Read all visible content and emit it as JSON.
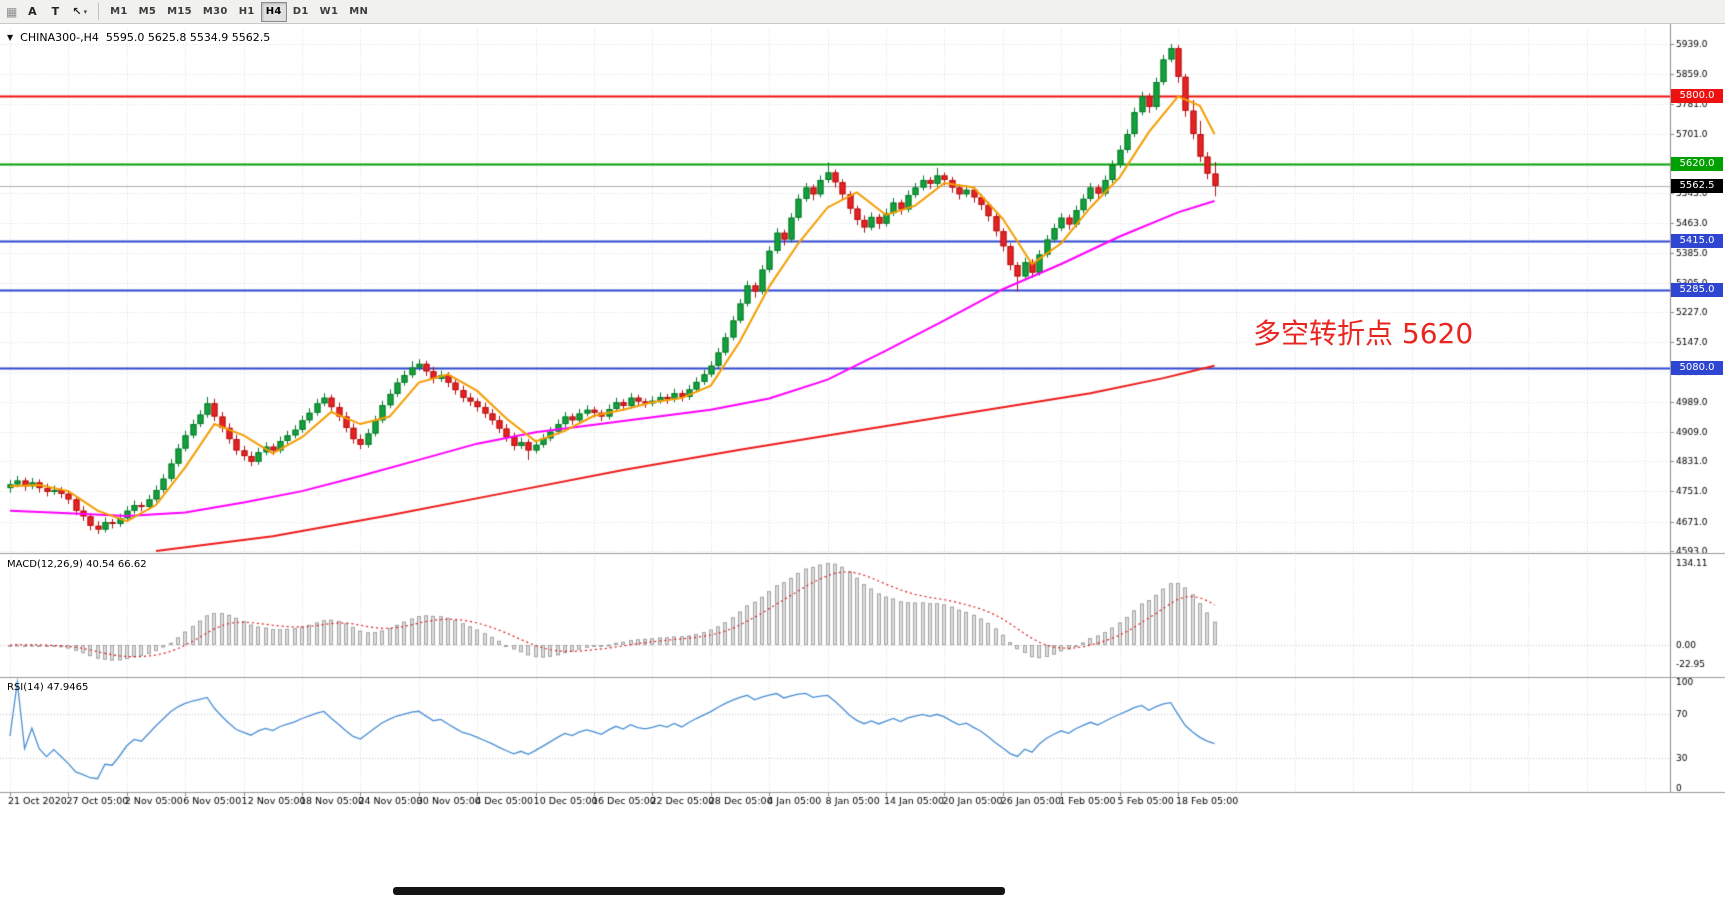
{
  "toolbar": {
    "a_label": "A",
    "t_label": "T",
    "icons": {
      "grip": "▦",
      "cursor": "↖",
      "dropdown": "▾",
      "collapse": "▼"
    },
    "timeframes": [
      "M1",
      "M5",
      "M15",
      "M30",
      "H1",
      "H4",
      "D1",
      "W1",
      "MN"
    ],
    "active_timeframe": "H4"
  },
  "chart": {
    "title_symbol": "CHINA300-,H4",
    "title_ohlc": "5595.0 5625.8 5534.9 5562.5",
    "macd_label": "MACD(12,26,9) 40.54 66.62",
    "rsi_label": "RSI(14) 47.9465",
    "annotation": {
      "text": "多空转折点 5620",
      "color": "#e8251f"
    }
  },
  "chart_data": {
    "type": "candlestick",
    "symbol": "CHINA300-",
    "timeframe": "H4",
    "last_candle": {
      "open": 5595.0,
      "high": 5625.8,
      "low": 5534.9,
      "close": 5562.5
    },
    "price_axis": {
      "min": 4593.0,
      "max": 5939.0,
      "ticks": [
        5939.0,
        5859.0,
        5781.0,
        5701.0,
        5621.0,
        5543.0,
        5463.0,
        5385.0,
        5305.0,
        5227.0,
        5147.0,
        5069.0,
        4989.0,
        4909.0,
        4831.0,
        4751.0,
        4671.0,
        4593.0
      ]
    },
    "label_every_n_bars": 8,
    "x_labels": [
      "21 Oct 2020",
      "27 Oct 05:00",
      "2 Nov 05:00",
      "6 Nov 05:00",
      "12 Nov 05:00",
      "18 Nov 05:00",
      "24 Nov 05:00",
      "30 Nov 05:00",
      "4 Dec 05:00",
      "10 Dec 05:00",
      "16 Dec 05:00",
      "22 Dec 05:00",
      "28 Dec 05:00",
      "4 Jan 05:00",
      "8 Jan 05:00",
      "14 Jan 05:00",
      "20 Jan 05:00",
      "26 Jan 05:00",
      "1 Feb 05:00",
      "5 Feb 05:00",
      "18 Feb 05:00"
    ],
    "levels": [
      {
        "price": 5800.0,
        "label": "5800.0",
        "color": "#ef1010"
      },
      {
        "price": 5620.0,
        "label": "5620.0",
        "color": "#00a000"
      },
      {
        "price": 5415.0,
        "label": "5415.0",
        "color": "#2e46d1"
      },
      {
        "price": 5285.0,
        "label": "5285.0",
        "color": "#2e46d1"
      },
      {
        "price": 5080.0,
        "label": "5080.0",
        "color": "#2e46d1"
      }
    ],
    "current_price": {
      "value": 5562.5,
      "label": "5562.5",
      "line_color": "#b0b0b0",
      "tag_color": "#000000"
    },
    "candles": [
      [
        4760,
        4782,
        4748,
        4770
      ],
      [
        4770,
        4792,
        4762,
        4780
      ],
      [
        4780,
        4788,
        4753,
        4765
      ],
      [
        4765,
        4787,
        4757,
        4775
      ],
      [
        4775,
        4783,
        4748,
        4760
      ],
      [
        4760,
        4772,
        4738,
        4750
      ],
      [
        4750,
        4767,
        4742,
        4755
      ],
      [
        4755,
        4763,
        4733,
        4745
      ],
      [
        4745,
        4753,
        4718,
        4730
      ],
      [
        4730,
        4738,
        4688,
        4700
      ],
      [
        4700,
        4712,
        4673,
        4685
      ],
      [
        4685,
        4693,
        4648,
        4660
      ],
      [
        4660,
        4672,
        4638,
        4650
      ],
      [
        4650,
        4682,
        4642,
        4670
      ],
      [
        4670,
        4678,
        4653,
        4665
      ],
      [
        4665,
        4692,
        4657,
        4680
      ],
      [
        4680,
        4712,
        4672,
        4700
      ],
      [
        4700,
        4727,
        4692,
        4715
      ],
      [
        4715,
        4723,
        4698,
        4710
      ],
      [
        4710,
        4742,
        4702,
        4730
      ],
      [
        4730,
        4767,
        4722,
        4755
      ],
      [
        4755,
        4797,
        4747,
        4785
      ],
      [
        4785,
        4837,
        4777,
        4825
      ],
      [
        4825,
        4877,
        4817,
        4865
      ],
      [
        4865,
        4912,
        4857,
        4900
      ],
      [
        4900,
        4942,
        4892,
        4930
      ],
      [
        4930,
        4967,
        4922,
        4955
      ],
      [
        4955,
        5002,
        4947,
        4985
      ],
      [
        4985,
        4997,
        4938,
        4950
      ],
      [
        4950,
        4962,
        4908,
        4920
      ],
      [
        4920,
        4932,
        4878,
        4890
      ],
      [
        4890,
        4902,
        4848,
        4860
      ],
      [
        4860,
        4872,
        4833,
        4845
      ],
      [
        4845,
        4857,
        4818,
        4830
      ],
      [
        4830,
        4867,
        4822,
        4855
      ],
      [
        4855,
        4882,
        4847,
        4870
      ],
      [
        4870,
        4878,
        4848,
        4860
      ],
      [
        4860,
        4897,
        4852,
        4885
      ],
      [
        4885,
        4912,
        4877,
        4900
      ],
      [
        4900,
        4927,
        4892,
        4915
      ],
      [
        4915,
        4952,
        4907,
        4940
      ],
      [
        4940,
        4972,
        4932,
        4960
      ],
      [
        4960,
        4997,
        4952,
        4985
      ],
      [
        4985,
        5012,
        4977,
        5000
      ],
      [
        5000,
        5008,
        4963,
        4975
      ],
      [
        4975,
        4987,
        4938,
        4950
      ],
      [
        4950,
        4962,
        4908,
        4920
      ],
      [
        4920,
        4932,
        4878,
        4890
      ],
      [
        4890,
        4902,
        4863,
        4875
      ],
      [
        4875,
        4917,
        4867,
        4905
      ],
      [
        4905,
        4952,
        4897,
        4940
      ],
      [
        4940,
        4992,
        4932,
        4980
      ],
      [
        4980,
        5022,
        4972,
        5010
      ],
      [
        5010,
        5052,
        5002,
        5040
      ],
      [
        5040,
        5072,
        5032,
        5060
      ],
      [
        5060,
        5097,
        5052,
        5080
      ],
      [
        5080,
        5102,
        5072,
        5090
      ],
      [
        5090,
        5098,
        5058,
        5070
      ],
      [
        5070,
        5082,
        5038,
        5050
      ],
      [
        5050,
        5072,
        5042,
        5060
      ],
      [
        5060,
        5068,
        5028,
        5040
      ],
      [
        5040,
        5052,
        5008,
        5020
      ],
      [
        5020,
        5032,
        4988,
        5000
      ],
      [
        5000,
        5012,
        4978,
        4990
      ],
      [
        4990,
        4998,
        4963,
        4975
      ],
      [
        4975,
        4987,
        4946,
        4958
      ],
      [
        4958,
        4970,
        4928,
        4940
      ],
      [
        4940,
        4952,
        4906,
        4918
      ],
      [
        4918,
        4930,
        4883,
        4895
      ],
      [
        4895,
        4907,
        4860,
        4872
      ],
      [
        4872,
        4894,
        4864,
        4882
      ],
      [
        4882,
        4890,
        4835,
        4860
      ],
      [
        4860,
        4887,
        4852,
        4875
      ],
      [
        4875,
        4904,
        4867,
        4892
      ],
      [
        4892,
        4922,
        4884,
        4910
      ],
      [
        4910,
        4942,
        4902,
        4930
      ],
      [
        4930,
        4962,
        4922,
        4950
      ],
      [
        4950,
        4958,
        4928,
        4940
      ],
      [
        4940,
        4970,
        4932,
        4958
      ],
      [
        4958,
        4980,
        4950,
        4968
      ],
      [
        4968,
        4976,
        4948,
        4960
      ],
      [
        4960,
        4968,
        4938,
        4950
      ],
      [
        4950,
        4982,
        4942,
        4970
      ],
      [
        4970,
        5000,
        4962,
        4988
      ],
      [
        4988,
        4996,
        4966,
        4978
      ],
      [
        4978,
        5012,
        4970,
        5000
      ],
      [
        5000,
        5008,
        4978,
        4990
      ],
      [
        4990,
        4998,
        4973,
        4985
      ],
      [
        4985,
        5004,
        4977,
        4992
      ],
      [
        4992,
        5014,
        4984,
        5002
      ],
      [
        5002,
        5010,
        4984,
        4996
      ],
      [
        4996,
        5024,
        4988,
        5012
      ],
      [
        5012,
        5020,
        4990,
        5002
      ],
      [
        5002,
        5034,
        4994,
        5022
      ],
      [
        5022,
        5054,
        5014,
        5042
      ],
      [
        5042,
        5074,
        5034,
        5062
      ],
      [
        5062,
        5097,
        5054,
        5085
      ],
      [
        5085,
        5132,
        5077,
        5120
      ],
      [
        5120,
        5172,
        5112,
        5160
      ],
      [
        5160,
        5217,
        5152,
        5205
      ],
      [
        5205,
        5262,
        5197,
        5250
      ],
      [
        5250,
        5310,
        5242,
        5298
      ],
      [
        5298,
        5306,
        5266,
        5282
      ],
      [
        5282,
        5352,
        5274,
        5340
      ],
      [
        5340,
        5402,
        5332,
        5390
      ],
      [
        5390,
        5450,
        5382,
        5438
      ],
      [
        5438,
        5446,
        5404,
        5420
      ],
      [
        5420,
        5490,
        5412,
        5478
      ],
      [
        5478,
        5540,
        5470,
        5528
      ],
      [
        5528,
        5570,
        5520,
        5558
      ],
      [
        5558,
        5566,
        5524,
        5540
      ],
      [
        5540,
        5590,
        5532,
        5578
      ],
      [
        5578,
        5625,
        5570,
        5598
      ],
      [
        5598,
        5606,
        5558,
        5572
      ],
      [
        5572,
        5580,
        5526,
        5540
      ],
      [
        5540,
        5548,
        5488,
        5502
      ],
      [
        5502,
        5510,
        5458,
        5472
      ],
      [
        5472,
        5484,
        5438,
        5452
      ],
      [
        5452,
        5492,
        5444,
        5480
      ],
      [
        5480,
        5488,
        5448,
        5462
      ],
      [
        5462,
        5502,
        5454,
        5490
      ],
      [
        5490,
        5530,
        5482,
        5518
      ],
      [
        5518,
        5526,
        5486,
        5500
      ],
      [
        5500,
        5550,
        5492,
        5538
      ],
      [
        5538,
        5570,
        5530,
        5558
      ],
      [
        5558,
        5590,
        5550,
        5578
      ],
      [
        5578,
        5586,
        5554,
        5568
      ],
      [
        5568,
        5610,
        5560,
        5590
      ],
      [
        5590,
        5598,
        5564,
        5578
      ],
      [
        5578,
        5586,
        5544,
        5558
      ],
      [
        5558,
        5566,
        5526,
        5540
      ],
      [
        5540,
        5564,
        5532,
        5552
      ],
      [
        5552,
        5560,
        5518,
        5532
      ],
      [
        5532,
        5540,
        5498,
        5512
      ],
      [
        5512,
        5520,
        5468,
        5482
      ],
      [
        5482,
        5490,
        5428,
        5442
      ],
      [
        5442,
        5450,
        5388,
        5402
      ],
      [
        5402,
        5410,
        5338,
        5352
      ],
      [
        5352,
        5360,
        5282,
        5322
      ],
      [
        5322,
        5372,
        5314,
        5360
      ],
      [
        5360,
        5368,
        5318,
        5332
      ],
      [
        5332,
        5392,
        5324,
        5380
      ],
      [
        5380,
        5432,
        5372,
        5420
      ],
      [
        5420,
        5462,
        5412,
        5450
      ],
      [
        5450,
        5490,
        5442,
        5478
      ],
      [
        5478,
        5486,
        5446,
        5460
      ],
      [
        5460,
        5510,
        5452,
        5498
      ],
      [
        5498,
        5540,
        5490,
        5528
      ],
      [
        5528,
        5570,
        5520,
        5558
      ],
      [
        5558,
        5566,
        5528,
        5542
      ],
      [
        5542,
        5590,
        5534,
        5578
      ],
      [
        5578,
        5630,
        5570,
        5618
      ],
      [
        5618,
        5670,
        5610,
        5658
      ],
      [
        5658,
        5712,
        5650,
        5700
      ],
      [
        5700,
        5770,
        5692,
        5758
      ],
      [
        5758,
        5812,
        5750,
        5800
      ],
      [
        5800,
        5808,
        5756,
        5772
      ],
      [
        5772,
        5850,
        5764,
        5838
      ],
      [
        5838,
        5910,
        5830,
        5898
      ],
      [
        5898,
        5939,
        5890,
        5928
      ],
      [
        5928,
        5936,
        5836,
        5852
      ],
      [
        5852,
        5860,
        5746,
        5762
      ],
      [
        5762,
        5790,
        5686,
        5700
      ],
      [
        5700,
        5735,
        5626,
        5640
      ],
      [
        5640,
        5652,
        5580,
        5595
      ],
      [
        5595,
        5625.8,
        5534.9,
        5562.5
      ]
    ],
    "ma_lines": [
      {
        "name": "ma-slow-red",
        "color": "#ee1c1c",
        "points": [
          [
            20,
            4593
          ],
          [
            36,
            4632
          ],
          [
            52,
            4688
          ],
          [
            68,
            4748
          ],
          [
            84,
            4808
          ],
          [
            100,
            4862
          ],
          [
            116,
            4912
          ],
          [
            132,
            4962
          ],
          [
            148,
            5012
          ],
          [
            158,
            5052
          ],
          [
            165,
            5085
          ]
        ]
      },
      {
        "name": "ma-mid-magenta",
        "color": "#ff00ff",
        "points": [
          [
            0,
            4700
          ],
          [
            8,
            4693
          ],
          [
            16,
            4686
          ],
          [
            24,
            4695
          ],
          [
            32,
            4722
          ],
          [
            40,
            4752
          ],
          [
            48,
            4792
          ],
          [
            56,
            4835
          ],
          [
            64,
            4878
          ],
          [
            72,
            4908
          ],
          [
            80,
            4928
          ],
          [
            88,
            4948
          ],
          [
            96,
            4968
          ],
          [
            104,
            4998
          ],
          [
            112,
            5048
          ],
          [
            120,
            5125
          ],
          [
            128,
            5205
          ],
          [
            136,
            5288
          ],
          [
            144,
            5355
          ],
          [
            152,
            5428
          ],
          [
            160,
            5492
          ],
          [
            165,
            5522
          ]
        ]
      },
      {
        "name": "ma-fast-orange",
        "color": "#f59d00",
        "points": [
          [
            0,
            4765
          ],
          [
            4,
            4768
          ],
          [
            8,
            4752
          ],
          [
            12,
            4700
          ],
          [
            16,
            4672
          ],
          [
            20,
            4715
          ],
          [
            24,
            4815
          ],
          [
            28,
            4930
          ],
          [
            32,
            4900
          ],
          [
            36,
            4852
          ],
          [
            40,
            4895
          ],
          [
            44,
            4962
          ],
          [
            48,
            4930
          ],
          [
            52,
            4950
          ],
          [
            56,
            5040
          ],
          [
            60,
            5062
          ],
          [
            64,
            5018
          ],
          [
            68,
            4945
          ],
          [
            72,
            4884
          ],
          [
            76,
            4912
          ],
          [
            80,
            4952
          ],
          [
            84,
            4968
          ],
          [
            88,
            4988
          ],
          [
            92,
            4999
          ],
          [
            96,
            5032
          ],
          [
            100,
            5150
          ],
          [
            104,
            5295
          ],
          [
            108,
            5410
          ],
          [
            112,
            5505
          ],
          [
            116,
            5545
          ],
          [
            120,
            5485
          ],
          [
            124,
            5510
          ],
          [
            128,
            5570
          ],
          [
            132,
            5558
          ],
          [
            136,
            5475
          ],
          [
            140,
            5355
          ],
          [
            144,
            5410
          ],
          [
            148,
            5505
          ],
          [
            152,
            5585
          ],
          [
            156,
            5705
          ],
          [
            160,
            5800
          ],
          [
            163,
            5775
          ],
          [
            165,
            5700
          ]
        ]
      }
    ],
    "macd": {
      "params": [
        12,
        26,
        9
      ],
      "main_value": 40.54,
      "signal_value": 66.62,
      "axis_labels": [
        "134.11",
        "0.00",
        "-22.95"
      ],
      "bar_fill": "#dcdcdc",
      "bar_stroke": "#a6a6a6",
      "signal_color": "#e02020"
    },
    "rsi": {
      "period": 14,
      "value": 47.9465,
      "axis_labels": [
        "100",
        "70",
        "30",
        "0"
      ],
      "guide_levels": [
        70,
        30
      ],
      "line_color": "#4a8fd4"
    },
    "colors": {
      "bull": "#14a03c",
      "bull_stroke": "#0a7a2c",
      "bear": "#e72222",
      "bear_stroke": "#b31414",
      "grid": "#e0e0e0",
      "axis_text": "#000000"
    }
  }
}
